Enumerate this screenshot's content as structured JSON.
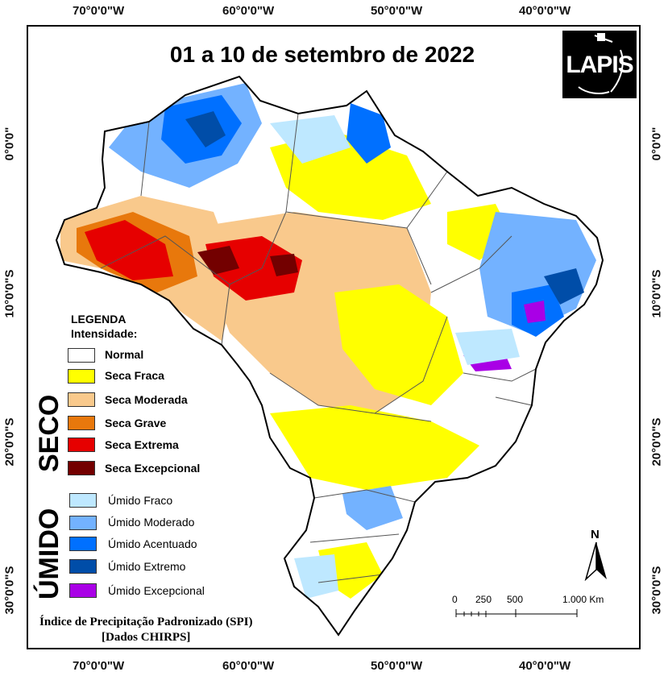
{
  "title": "01 a 10 de setembro de 2022",
  "logo": {
    "text": "LAPIS",
    "icon": "satellite-icon"
  },
  "coords": {
    "top": [
      "70°0'0\"W",
      "60°0'0\"W",
      "50°0'0\"W",
      "40°0'0\"W"
    ],
    "bottom": [
      "70°0'0\"W",
      "60°0'0\"W",
      "50°0'0\"W",
      "40°0'0\"W"
    ],
    "left": [
      "0°0'0\"",
      "10°0'0\"S",
      "20°0'0\"S",
      "30°0'0\"S"
    ],
    "right": [
      "0°0'0\"",
      "10°0'0\"S",
      "20°0'0\"S",
      "30°0'0\"S"
    ]
  },
  "legend": {
    "title": "LEGENDA",
    "subtitle": "Intensidade:",
    "dry_label": "SECO",
    "wet_label": "ÚMIDO",
    "dry": [
      {
        "label": "Normal",
        "color": "#ffffff"
      },
      {
        "label": "Seca Fraca",
        "color": "#ffff00"
      },
      {
        "label": "Seca Moderada",
        "color": "#f9c98c"
      },
      {
        "label": "Seca Grave",
        "color": "#e8780c"
      },
      {
        "label": "Seca Extrema",
        "color": "#e60000"
      },
      {
        "label": "Seca Excepcional",
        "color": "#730000"
      }
    ],
    "wet": [
      {
        "label": "Úmido Fraco",
        "color": "#bee8ff"
      },
      {
        "label": "Úmido Moderado",
        "color": "#73b2ff"
      },
      {
        "label": "Úmido Acentuado",
        "color": "#0070ff"
      },
      {
        "label": "Úmido Extremo",
        "color": "#004da8"
      },
      {
        "label": "Úmido Excepcional",
        "color": "#a900e6"
      }
    ]
  },
  "north": "N",
  "scale": {
    "ticks": [
      "0",
      "250",
      "500",
      "1.000 Km"
    ]
  },
  "credit": {
    "line1": "Índice de Precipitação Padronizado (SPI)",
    "line2": "[Dados CHIRPS]"
  }
}
